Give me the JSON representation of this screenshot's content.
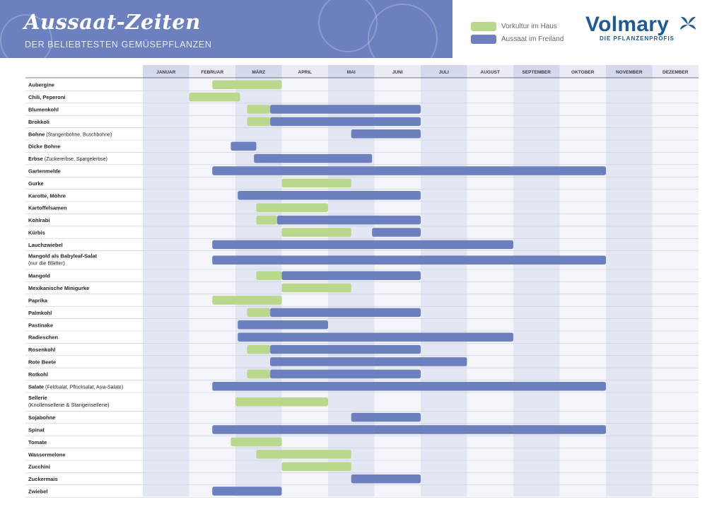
{
  "header": {
    "title": "Aussaat-Zeiten",
    "subtitle": "DER BELIEBTESTEN GEMÜSEPFLANZEN"
  },
  "logo": {
    "name": "Volmary",
    "tagline": "DIE PFLANZENPROFIS"
  },
  "colors": {
    "banner": "#6c7fbf",
    "vorkultur": "#b9d88b",
    "freiland": "#6c7fbf",
    "logo": "#1e5a96"
  },
  "legend": [
    {
      "label": "Vorkultur im Haus",
      "color": "#b9d88b"
    },
    {
      "label": "Aussaat im Freiland",
      "color": "#6c7fbf"
    }
  ],
  "chart_data": {
    "type": "gantt",
    "months": [
      "JANUAR",
      "FEBRUAR",
      "MÄRZ",
      "APRIL",
      "MAI",
      "JUNI",
      "JULI",
      "AUGUST",
      "SEPTEMBER",
      "OKTOBER",
      "NOVEMBER",
      "DEZEMBER"
    ],
    "x_unit": "month (1 = start of January, 13 = end of December)",
    "series": [
      {
        "name": "Vorkultur im Haus",
        "color": "#b9d88b"
      },
      {
        "name": "Aussaat im Freiland",
        "color": "#6c7fbf"
      }
    ],
    "rows": [
      {
        "name": "Aubergine",
        "note": "",
        "vorkultur": [
          [
            2.5,
            4.0
          ]
        ],
        "freiland": []
      },
      {
        "name": "Chili, Peperoni",
        "note": "",
        "vorkultur": [
          [
            2.0,
            3.1
          ]
        ],
        "freiland": []
      },
      {
        "name": "Blumenkohl",
        "note": "",
        "vorkultur": [
          [
            3.25,
            3.75
          ]
        ],
        "freiland": [
          [
            3.75,
            7.0
          ]
        ]
      },
      {
        "name": "Brokkoli",
        "note": "",
        "vorkultur": [
          [
            3.25,
            3.75
          ]
        ],
        "freiland": [
          [
            3.75,
            7.0
          ]
        ]
      },
      {
        "name": "Bohne",
        "note": "(Stangenbohne, Buschbohne)",
        "vorkultur": [],
        "freiland": [
          [
            5.5,
            7.0
          ]
        ]
      },
      {
        "name": "Dicke Bohne",
        "note": "",
        "vorkultur": [],
        "freiland": [
          [
            2.9,
            3.45
          ]
        ]
      },
      {
        "name": "Erbse",
        "note": "(Zuckererbse, Spargelerbse)",
        "vorkultur": [],
        "freiland": [
          [
            3.4,
            5.95
          ]
        ]
      },
      {
        "name": "Gartenmelde",
        "note": "",
        "vorkultur": [],
        "freiland": [
          [
            2.5,
            11.0
          ]
        ]
      },
      {
        "name": "Gurke",
        "note": "",
        "vorkultur": [
          [
            4.0,
            5.5
          ]
        ],
        "freiland": []
      },
      {
        "name": "Karotte, Möhre",
        "note": "",
        "vorkultur": [],
        "freiland": [
          [
            3.05,
            7.0
          ]
        ]
      },
      {
        "name": "Kartoffelsamen",
        "note": "",
        "vorkultur": [
          [
            3.45,
            5.0
          ]
        ],
        "freiland": []
      },
      {
        "name": "Kohlrabi",
        "note": "",
        "vorkultur": [
          [
            3.45,
            3.9
          ]
        ],
        "freiland": [
          [
            3.9,
            7.0
          ]
        ]
      },
      {
        "name": "Kürbis",
        "note": "",
        "vorkultur": [
          [
            4.0,
            5.5
          ]
        ],
        "freiland": [
          [
            5.95,
            7.0
          ]
        ]
      },
      {
        "name": "Lauchzwiebel",
        "note": "",
        "vorkultur": [],
        "freiland": [
          [
            2.5,
            9.0
          ]
        ]
      },
      {
        "name": "Mangold als Babyleaf-Salat",
        "note": "(nur die Blätter)",
        "vorkultur": [],
        "freiland": [
          [
            2.5,
            11.0
          ]
        ]
      },
      {
        "name": "Mangold",
        "note": "",
        "vorkultur": [
          [
            3.45,
            4.0
          ]
        ],
        "freiland": [
          [
            4.0,
            7.0
          ]
        ]
      },
      {
        "name": "Mexikanische Minigurke",
        "note": "",
        "vorkultur": [
          [
            4.0,
            5.5
          ]
        ],
        "freiland": []
      },
      {
        "name": "Paprika",
        "note": "",
        "vorkultur": [
          [
            2.5,
            4.0
          ]
        ],
        "freiland": []
      },
      {
        "name": "Palmkohl",
        "note": "",
        "vorkultur": [
          [
            3.25,
            3.75
          ]
        ],
        "freiland": [
          [
            3.75,
            7.0
          ]
        ]
      },
      {
        "name": "Pastinake",
        "note": "",
        "vorkultur": [],
        "freiland": [
          [
            3.05,
            5.0
          ]
        ]
      },
      {
        "name": "Radieschen",
        "note": "",
        "vorkultur": [],
        "freiland": [
          [
            3.05,
            9.0
          ]
        ]
      },
      {
        "name": "Rosenkohl",
        "note": "",
        "vorkultur": [
          [
            3.25,
            3.75
          ]
        ],
        "freiland": [
          [
            3.75,
            7.0
          ]
        ]
      },
      {
        "name": "Rote Beete",
        "note": "",
        "vorkultur": [],
        "freiland": [
          [
            3.75,
            8.0
          ]
        ]
      },
      {
        "name": "Rotkohl",
        "note": "",
        "vorkultur": [
          [
            3.25,
            3.75
          ]
        ],
        "freiland": [
          [
            3.75,
            7.0
          ]
        ]
      },
      {
        "name": "Salate",
        "note": "(Feldsalat, Pflücksalat, Asia-Salate)",
        "vorkultur": [],
        "freiland": [
          [
            2.5,
            11.0
          ]
        ]
      },
      {
        "name": "Sellerie",
        "note": "(Knollensellerie & Stangensellerie)",
        "vorkultur": [
          [
            3.0,
            5.0
          ]
        ],
        "freiland": []
      },
      {
        "name": "Sojabohne",
        "note": "",
        "vorkultur": [],
        "freiland": [
          [
            5.5,
            7.0
          ]
        ]
      },
      {
        "name": "Spinat",
        "note": "",
        "vorkultur": [],
        "freiland": [
          [
            2.5,
            11.0
          ]
        ]
      },
      {
        "name": "Tomate",
        "note": "",
        "vorkultur": [
          [
            2.9,
            4.0
          ]
        ],
        "freiland": []
      },
      {
        "name": "Wassermelone",
        "note": "",
        "vorkultur": [
          [
            3.45,
            5.5
          ]
        ],
        "freiland": []
      },
      {
        "name": "Zucchini",
        "note": "",
        "vorkultur": [
          [
            4.0,
            5.5
          ]
        ],
        "freiland": []
      },
      {
        "name": "Zuckermais",
        "note": "",
        "vorkultur": [],
        "freiland": [
          [
            5.5,
            7.0
          ]
        ]
      },
      {
        "name": "Zwiebel",
        "note": "",
        "vorkultur": [],
        "freiland": [
          [
            2.5,
            4.0
          ]
        ]
      }
    ]
  }
}
